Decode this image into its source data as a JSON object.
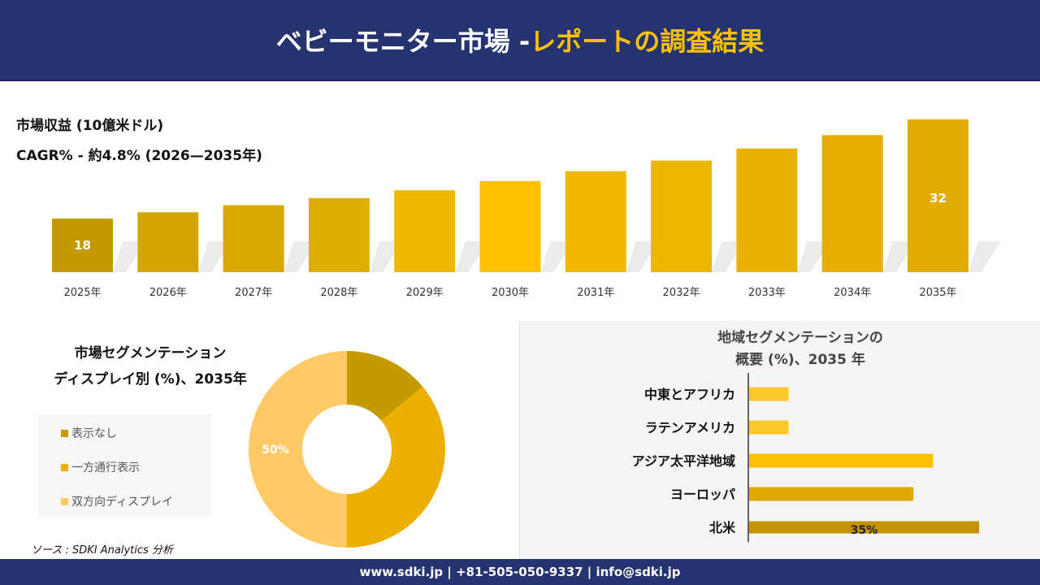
{
  "header": {
    "title_white": "ベビーモニター市場 -",
    "title_yellow": "レポートの調査結果"
  },
  "revenue": {
    "title": "市場収益 (10億米ドル)",
    "cagr": "CAGR% - 約4.8% (2026—2035年)"
  },
  "colors": {
    "header_bg": "#253470",
    "accent": "#FFC000"
  },
  "chart_data": [
    {
      "type": "bar",
      "categories": [
        "2025年",
        "2026年",
        "2027年",
        "2028年",
        "2029年",
        "2030年",
        "2031年",
        "2032年",
        "2033年",
        "2034年",
        "2035年"
      ],
      "values": [
        18,
        18.9,
        19.9,
        20.9,
        22.0,
        23.3,
        24.7,
        26.2,
        27.9,
        29.8,
        32
      ],
      "data_labels": {
        "0": "18",
        "10": "32"
      },
      "colors": [
        "#C49A00",
        "#D4A500",
        "#DAA900",
        "#E0AE00",
        "#EFB700",
        "#FFC000",
        "#F2B800",
        "#EDB400",
        "#EAB100",
        "#E6AE00",
        "#E3AC00"
      ],
      "title": "",
      "xlabel": "",
      "ylabel": ""
    },
    {
      "type": "pie",
      "title": "市場セグメンテーション ディスプレイ別 (%)、2035年",
      "title_lines": [
        "市場セグメンテーション",
        "ディスプレイ別 (%)、2035年"
      ],
      "donut": true,
      "labels": [
        "表示なし",
        "一方通行表示",
        "双方向ディスプレイ"
      ],
      "values": [
        14,
        36,
        50
      ],
      "colors": [
        "#C49A00",
        "#EDB000",
        "#FFC966"
      ],
      "data_labels": {
        "2": "50%"
      },
      "legend": "left"
    },
    {
      "type": "bar",
      "orientation": "horizontal",
      "title": "地域セグメンテーションの 概要 (%)、2035 年",
      "title_lines": [
        "地域セグメンテーションの",
        "概要 (%)、2035 年"
      ],
      "categories": [
        "中東とアフリカ",
        "ラテンアメリカ",
        "アジア太平洋地域",
        "ヨーロッパ",
        "北米"
      ],
      "values": [
        6,
        6,
        28,
        25,
        35
      ],
      "colors": [
        "#FFC72C",
        "#FFC72C",
        "#FFC000",
        "#E0AA00",
        "#C49300"
      ],
      "data_labels": {
        "4": "35%"
      }
    }
  ],
  "source": "ソース : SDKI Analytics 分析",
  "footer": "www.sdki.jp | +81-505-050-9337 | info@sdki.jp"
}
